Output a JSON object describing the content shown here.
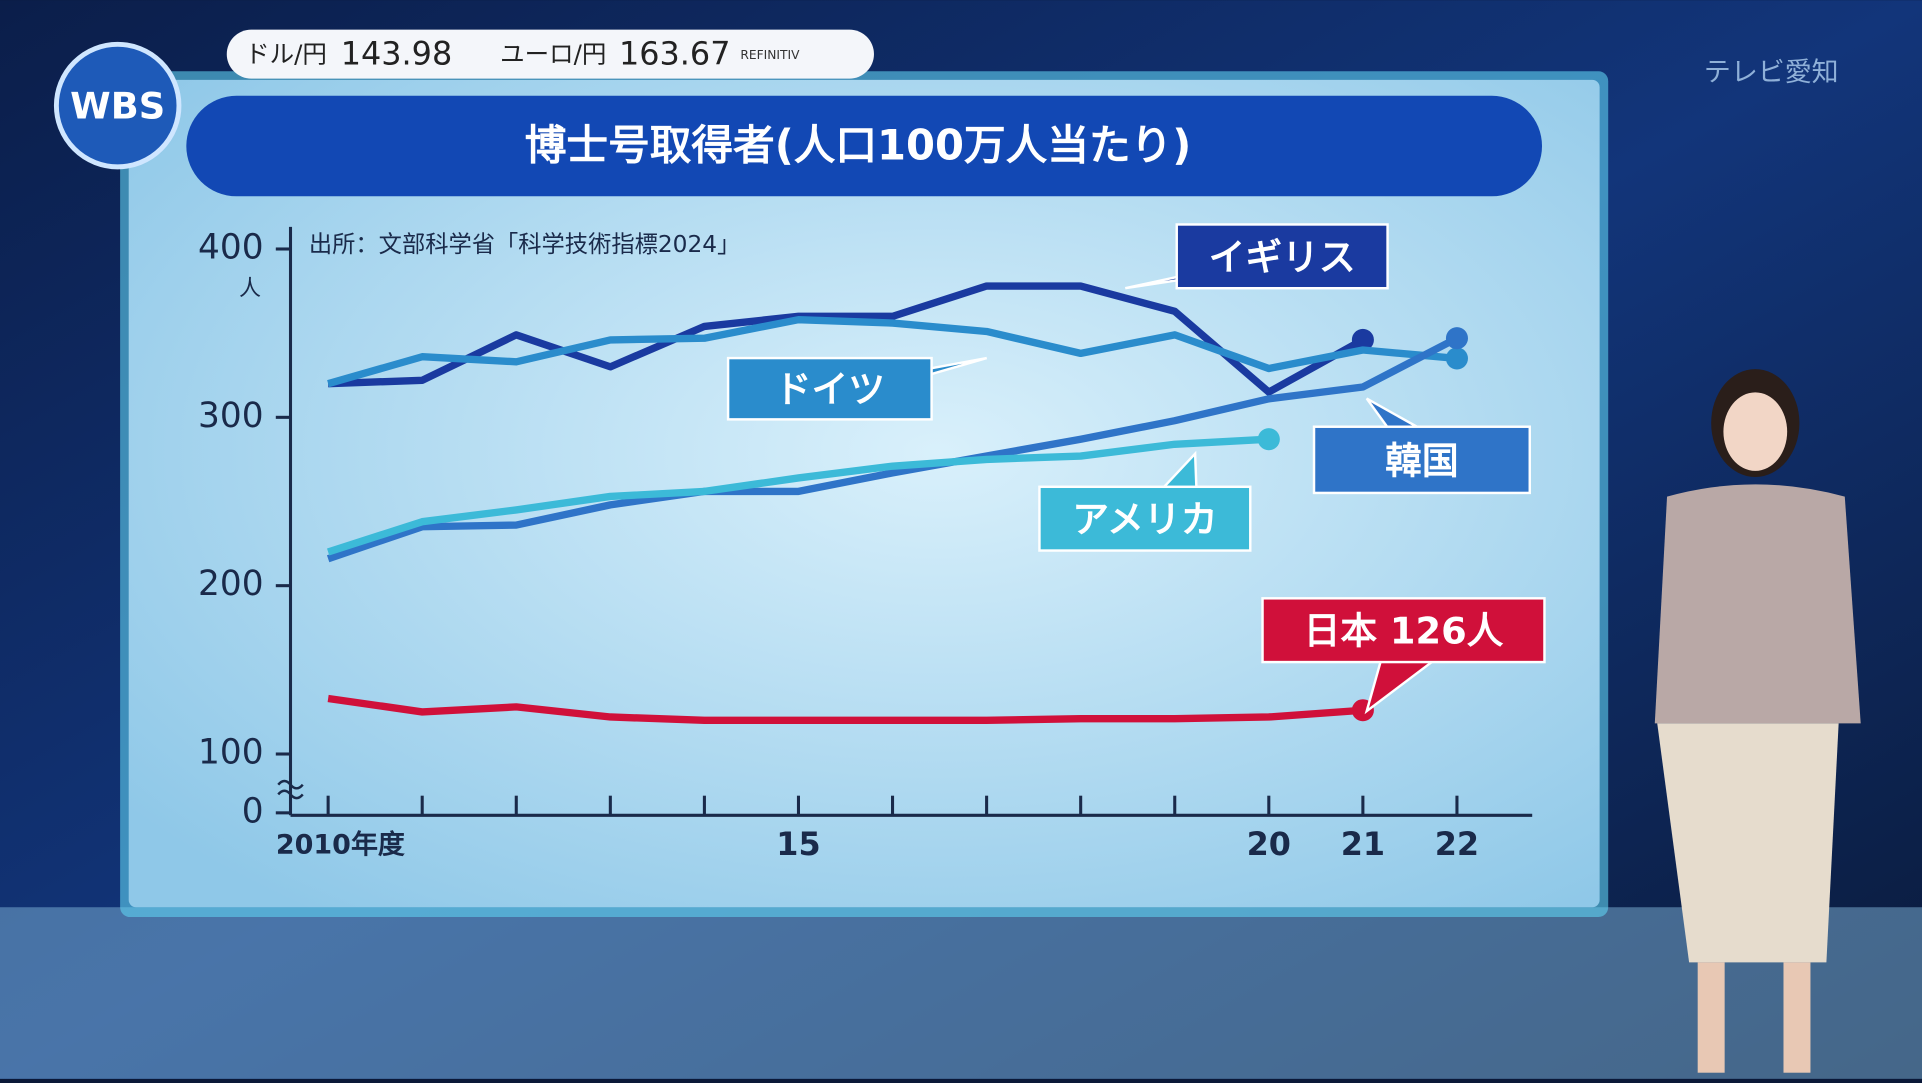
{
  "ticker": {
    "usd_label": "ドル/円",
    "usd_value": "143.98",
    "eur_label": "ユーロ/円",
    "eur_value": "163.67",
    "source": "REFINITIV"
  },
  "logo": "WBS",
  "station": "テレビ愛知",
  "chart_data": {
    "type": "line",
    "title": "博士号取得者(人口100万人当たり)",
    "note": "出所：文部科学省「科学技術指標2024」",
    "y_unit": "人",
    "x": [
      2010,
      2011,
      2012,
      2013,
      2014,
      2015,
      2016,
      2017,
      2018,
      2019,
      2020,
      2021,
      2022
    ],
    "xlim": [
      2009.6,
      2022.8
    ],
    "xticks": [
      {
        "value": 2010,
        "label": "2010年度"
      },
      {
        "value": 2015,
        "label": "15"
      },
      {
        "value": 2020,
        "label": "20"
      },
      {
        "value": 2021,
        "label": "21"
      },
      {
        "value": 2022,
        "label": "22"
      }
    ],
    "xminor": [
      2010,
      2011,
      2012,
      2013,
      2014,
      2015,
      2016,
      2017,
      2018,
      2019,
      2020,
      2021,
      2022
    ],
    "ylim": [
      0,
      400
    ],
    "yticks": [
      0,
      100,
      200,
      300,
      400
    ],
    "axis_break": true,
    "series": [
      {
        "name": "イギリス",
        "color": "#1a3aa0",
        "values": [
          320,
          322,
          349,
          330,
          354,
          360,
          360,
          378,
          378,
          363,
          315,
          346,
          null
        ]
      },
      {
        "name": "ドイツ",
        "color": "#2a8ccc",
        "values": [
          320,
          336,
          333,
          346,
          347,
          358,
          356,
          351,
          338,
          349,
          329,
          340,
          335
        ]
      },
      {
        "name": "韓国",
        "color": "#2f74c8",
        "values": [
          216,
          235,
          236,
          248,
          256,
          256,
          267,
          277,
          287,
          298,
          311,
          318,
          347
        ]
      },
      {
        "name": "アメリカ",
        "color": "#3cbad8",
        "values": [
          220,
          238,
          245,
          253,
          256,
          264,
          271,
          275,
          277,
          284,
          287,
          null,
          null
        ]
      },
      {
        "name": "日本",
        "color": "#d0103a",
        "values": [
          133,
          125,
          128,
          122,
          120,
          120,
          120,
          120,
          121,
          121,
          122,
          126,
          null
        ],
        "value_labels": [
          null,
          null,
          null,
          null,
          null,
          null,
          null,
          null,
          null,
          null,
          null,
          "126人",
          null
        ]
      }
    ]
  }
}
